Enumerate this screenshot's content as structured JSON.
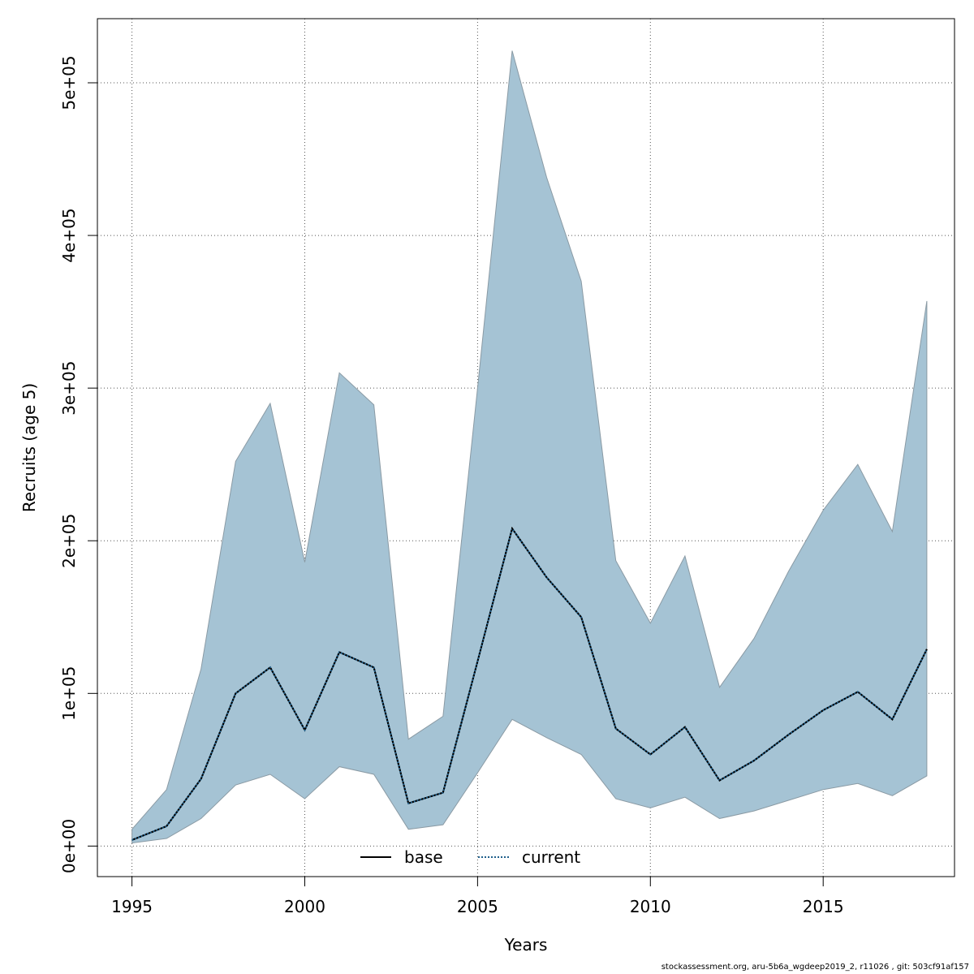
{
  "chart_data": {
    "type": "area",
    "xlabel": "Years",
    "ylabel": "Recruits (age 5)",
    "xlim": [
      1994,
      2018.8
    ],
    "ylim": [
      -20000,
      542000
    ],
    "x_ticks": [
      1995,
      2000,
      2005,
      2010,
      2015
    ],
    "x_tick_labels": [
      "1995",
      "2000",
      "2005",
      "2010",
      "2015"
    ],
    "y_ticks": [
      0,
      100000,
      200000,
      300000,
      400000,
      500000
    ],
    "y_tick_labels": [
      "0e+00",
      "1e+05",
      "2e+05",
      "3e+05",
      "4e+05",
      "5e+05"
    ],
    "grid": true,
    "x": [
      1995,
      1996,
      1997,
      1998,
      1999,
      2000,
      2001,
      2002,
      2003,
      2004,
      2005,
      2006,
      2007,
      2008,
      2009,
      2010,
      2011,
      2012,
      2013,
      2014,
      2015,
      2016,
      2017,
      2018
    ],
    "band": {
      "color": "#a5c3d4",
      "upper": [
        11000,
        37000,
        116000,
        252000,
        290000,
        186000,
        310000,
        289000,
        70000,
        85000,
        300000,
        521000,
        438000,
        370000,
        187000,
        146000,
        190000,
        104000,
        136000,
        180000,
        220000,
        250000,
        206000,
        357000
      ],
      "lower": [
        2000,
        5000,
        18000,
        40000,
        47000,
        31000,
        52000,
        47000,
        11000,
        14000,
        48000,
        83000,
        71000,
        60000,
        31000,
        25000,
        32000,
        18000,
        23000,
        30000,
        37000,
        41000,
        33000,
        46000
      ]
    },
    "series": [
      {
        "name": "base",
        "color": "#000000",
        "style": "solid",
        "values": [
          4000,
          13000,
          44000,
          100000,
          117000,
          76000,
          127000,
          117000,
          28000,
          35000,
          121000,
          208000,
          176000,
          150000,
          77000,
          60000,
          78000,
          43000,
          56000,
          73000,
          89000,
          101000,
          83000,
          129000
        ]
      },
      {
        "name": "current",
        "color": "#1f5f8b",
        "style": "dotted",
        "values": [
          4000,
          13000,
          44000,
          100000,
          117000,
          76000,
          127000,
          117000,
          28000,
          35000,
          121000,
          208000,
          176000,
          150000,
          77000,
          60000,
          78000,
          43000,
          56000,
          73000,
          89000,
          101000,
          83000,
          129000
        ]
      }
    ],
    "legend": {
      "position": "bottom-center",
      "entries": [
        "base",
        "current"
      ]
    }
  },
  "footer_text": "stockassessment.org, aru-5b6a_wgdeep2019_2, r11026 , git: 503cf91af157"
}
